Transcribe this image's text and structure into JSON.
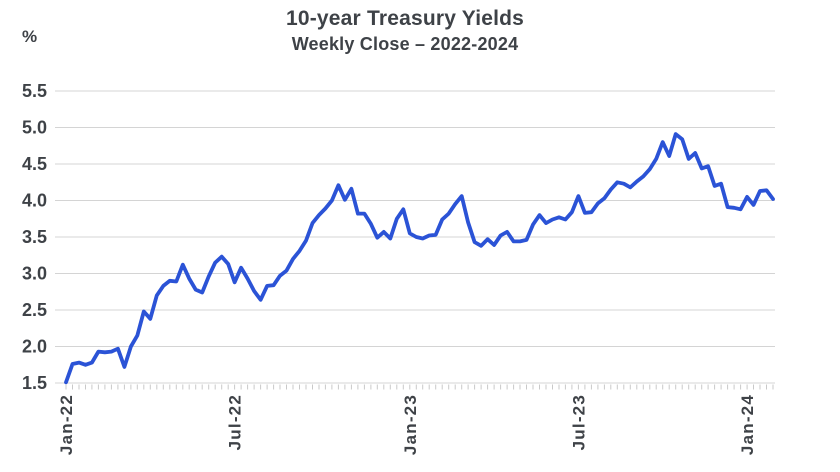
{
  "chart_data": {
    "type": "line",
    "title": "10-year Treasury Yields",
    "subtitle": "Weekly Close – 2022-2024",
    "unit": "%",
    "xlabel": "",
    "ylabel": "%",
    "ylim": [
      1.5,
      5.5
    ],
    "grid": true,
    "legend": false,
    "y_ticks": [
      {
        "value": 5.5,
        "label": "5.5"
      },
      {
        "value": 5.0,
        "label": "5.0"
      },
      {
        "value": 4.5,
        "label": "4.5"
      },
      {
        "value": 4.0,
        "label": "4.0"
      },
      {
        "value": 3.5,
        "label": "3.5"
      },
      {
        "value": 3.0,
        "label": "3.0"
      },
      {
        "value": 2.5,
        "label": "2.5"
      },
      {
        "value": 2.0,
        "label": "2.0"
      },
      {
        "value": 1.5,
        "label": "1.5"
      }
    ],
    "x_ticks": [
      {
        "label": "Jan-22",
        "index": 0
      },
      {
        "label": "Jul-22",
        "index": 26
      },
      {
        "label": "Jan-23",
        "index": 53
      },
      {
        "label": "Jul-23",
        "index": 79
      },
      {
        "label": "Jan-24",
        "index": 105
      }
    ],
    "x_minor_ticks": "weekly",
    "series": [
      {
        "name": "10-year Treasury yield (weekly close, %)",
        "values": [
          1.51,
          1.76,
          1.78,
          1.75,
          1.78,
          1.93,
          1.92,
          1.93,
          1.97,
          1.72,
          2.0,
          2.15,
          2.48,
          2.38,
          2.7,
          2.83,
          2.9,
          2.89,
          3.12,
          2.93,
          2.78,
          2.74,
          2.96,
          3.15,
          3.23,
          3.13,
          2.88,
          3.08,
          2.93,
          2.76,
          2.64,
          2.83,
          2.84,
          2.97,
          3.04,
          3.2,
          3.31,
          3.45,
          3.69,
          3.8,
          3.89,
          4.0,
          4.21,
          4.01,
          4.16,
          3.82,
          3.82,
          3.68,
          3.49,
          3.57,
          3.48,
          3.75,
          3.88,
          3.55,
          3.5,
          3.48,
          3.52,
          3.53,
          3.74,
          3.82,
          3.95,
          4.06,
          3.7,
          3.43,
          3.38,
          3.47,
          3.39,
          3.52,
          3.57,
          3.44,
          3.44,
          3.46,
          3.67,
          3.8,
          3.69,
          3.74,
          3.77,
          3.74,
          3.84,
          4.06,
          3.83,
          3.84,
          3.96,
          4.03,
          4.15,
          4.25,
          4.23,
          4.18,
          4.26,
          4.33,
          4.43,
          4.57,
          4.8,
          4.61,
          4.91,
          4.84,
          4.57,
          4.65,
          4.44,
          4.47,
          4.2,
          4.23,
          3.91,
          3.9,
          3.88,
          4.05,
          3.94,
          4.13,
          4.14,
          4.02
        ]
      }
    ],
    "colors": {
      "line": "#2b53d6",
      "grid": "#d4d4d4",
      "minor_tick": "#c9c9c9",
      "text": "#3e4247",
      "background": "#ffffff"
    }
  }
}
